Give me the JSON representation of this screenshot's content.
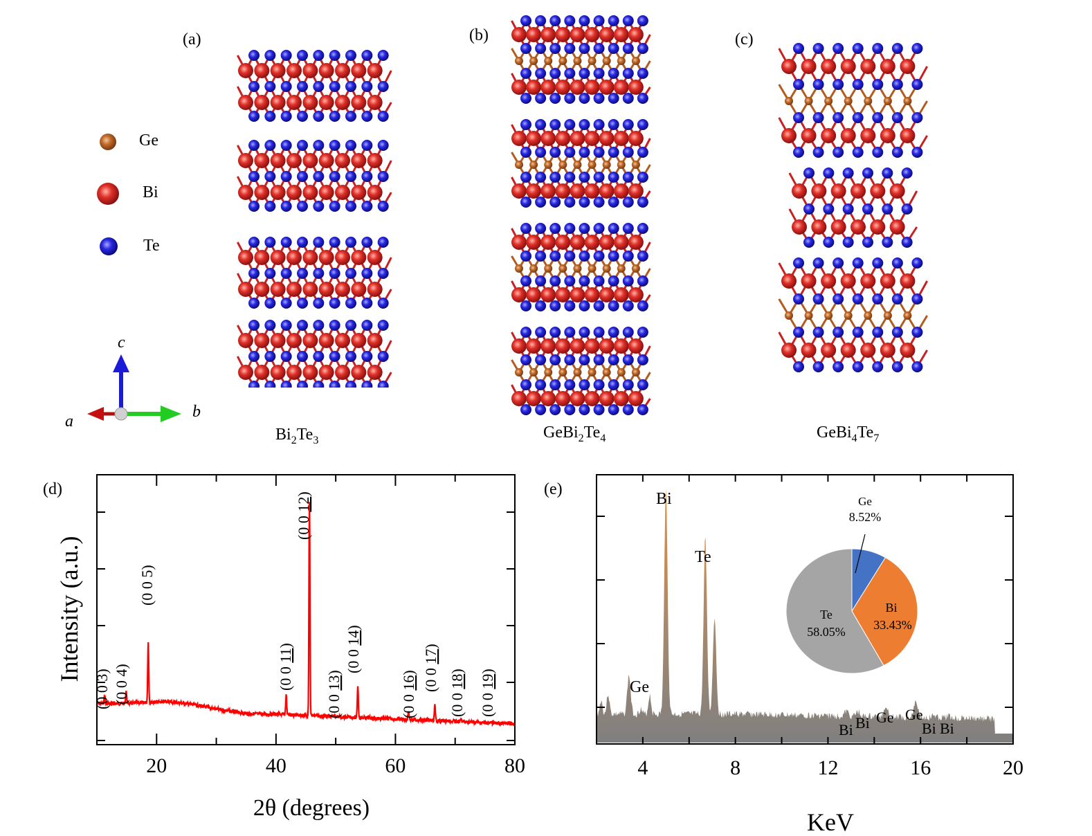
{
  "panels": {
    "a": {
      "label": "(a)",
      "compound_main": "Bi",
      "compound_sub1": "2",
      "compound_mid": "Te",
      "compound_sub2": "3"
    },
    "b": {
      "label": "(b)",
      "compound_main": "GeBi",
      "compound_sub1": "2",
      "compound_mid": "Te",
      "compound_sub2": "4"
    },
    "c": {
      "label": "(c)",
      "compound_main": "GeBi",
      "compound_sub1": "4",
      "compound_mid": "Te",
      "compound_sub2": "7"
    },
    "d": {
      "label": "(d)"
    },
    "e": {
      "label": "(e)"
    }
  },
  "legend": {
    "items": [
      {
        "label": "Ge",
        "color": "#b35a1f"
      },
      {
        "label": "Bi",
        "color": "#d42a22"
      },
      {
        "label": "Te",
        "color": "#2a2ad4"
      }
    ]
  },
  "axes_triad": {
    "a": "a",
    "b": "b",
    "c": "c",
    "colors": {
      "a": "#c41010",
      "b": "#22cc22",
      "c": "#1a1ad8"
    }
  },
  "colors": {
    "xrd": "#ff0000",
    "eds_peak": "#f08a30",
    "eds_base": "#808080",
    "pie_ge": "#4472c4",
    "pie_bi": "#ed7d31",
    "pie_te": "#a5a5a5"
  },
  "chart_data": [
    {
      "type": "line",
      "title": "(d)",
      "xlabel": "2θ (degrees)",
      "ylabel": "Intensity (a.u.)",
      "xlim": [
        10,
        80
      ],
      "xticks": [
        20,
        40,
        60,
        80
      ],
      "grid": false,
      "series": [
        {
          "name": "XRD",
          "color": "#ff0000"
        }
      ],
      "peaks": [
        {
          "label": "(0 0 3)",
          "x": 11.3,
          "rel_intensity": 0.04
        },
        {
          "label": "(0 0 4)",
          "x": 14.9,
          "rel_intensity": 0.06
        },
        {
          "label": "(0 0 5)",
          "x": 18.6,
          "rel_intensity": 0.28
        },
        {
          "label": "(0 0 11)",
          "x": 41.7,
          "rel_intensity": 0.09
        },
        {
          "label": "(0 0 12)",
          "x": 45.6,
          "rel_intensity": 1.0
        },
        {
          "label": "(0 0 13)",
          "x": 49.7,
          "rel_intensity": 0.01
        },
        {
          "label": "(0 0 14)",
          "x": 53.7,
          "rel_intensity": 0.15
        },
        {
          "label": "(0 0 16)",
          "x": 62.2,
          "rel_intensity": 0.04
        },
        {
          "label": "(0 0 17)",
          "x": 66.6,
          "rel_intensity": 0.07
        },
        {
          "label": "(0 0 18)",
          "x": 71.0,
          "rel_intensity": 0.01
        },
        {
          "label": "(0 0 19)",
          "x": 75.5,
          "rel_intensity": 0.0
        }
      ]
    },
    {
      "type": "area",
      "title": "(e)",
      "xlabel": "KeV",
      "ylabel": "",
      "xlim": [
        2,
        20
      ],
      "xticks": [
        4,
        8,
        12,
        16,
        20
      ],
      "grid": false,
      "peaks": [
        {
          "label": "Ge",
          "x": 3.4,
          "rel_intensity": 0.17
        },
        {
          "label": "Bi",
          "x": 5.0,
          "rel_intensity": 1.0
        },
        {
          "label": "Te",
          "x": 6.7,
          "rel_intensity": 0.78
        },
        {
          "label": "",
          "x": 7.1,
          "rel_intensity": 0.43
        },
        {
          "label": "Bi",
          "x": 12.8,
          "rel_intensity": 0.02
        },
        {
          "label": "Bi",
          "x": 13.3,
          "rel_intensity": 0.02
        },
        {
          "label": "Ge",
          "x": 14.5,
          "rel_intensity": 0.05
        },
        {
          "label": "Ge",
          "x": 15.8,
          "rel_intensity": 0.08
        },
        {
          "label": "Bi",
          "x": 16.6,
          "rel_intensity": 0.01
        },
        {
          "label": "Bi",
          "x": 17.2,
          "rel_intensity": 0.01
        }
      ],
      "inset_pie": {
        "type": "pie",
        "labels": [
          "Ge",
          "Bi",
          "Te"
        ],
        "values": [
          8.52,
          33.43,
          58.05
        ],
        "value_labels": [
          "8.52%",
          "33.43%",
          "58.05%"
        ],
        "colors": [
          "#4472c4",
          "#ed7d31",
          "#a5a5a5"
        ]
      }
    }
  ],
  "xrd": {
    "xlabel": "2θ (degrees)",
    "ylabel": "Intensity (a.u.)",
    "ticks": [
      "20",
      "40",
      "60",
      "80"
    ],
    "peak_labels": [
      {
        "pre": "(0 0 3)",
        "u": ""
      },
      {
        "pre": "(0 0 4)",
        "u": ""
      },
      {
        "pre": "(0 0 5)",
        "u": ""
      },
      {
        "pre": "(0 0 ",
        "u": "11",
        "post": ")"
      },
      {
        "pre": "(0 0 ",
        "u": "12",
        "post": ")"
      },
      {
        "pre": "(0 0 ",
        "u": "13",
        "post": ")"
      },
      {
        "pre": "(0 0 ",
        "u": "14",
        "post": ")"
      },
      {
        "pre": "(0 0 ",
        "u": "16",
        "post": ")"
      },
      {
        "pre": "(0 0 ",
        "u": "17",
        "post": ")"
      },
      {
        "pre": "(0 0 ",
        "u": "18",
        "post": ")"
      },
      {
        "pre": "(0 0 ",
        "u": "19",
        "post": ")"
      }
    ]
  },
  "eds": {
    "xlabel": "KeV",
    "ticks": [
      "4",
      "8",
      "12",
      "16",
      "20"
    ],
    "peak_labels": [
      "Ge",
      "Bi",
      "Te",
      "Bi",
      "Bi",
      "Ge",
      "Ge",
      "Bi",
      "Bi"
    ],
    "pie": {
      "ge_name": "Ge",
      "ge_value": "8.52%",
      "bi_name": "Bi",
      "bi_value": "33.43%",
      "te_name": "Te",
      "te_value": "58.05%"
    }
  }
}
